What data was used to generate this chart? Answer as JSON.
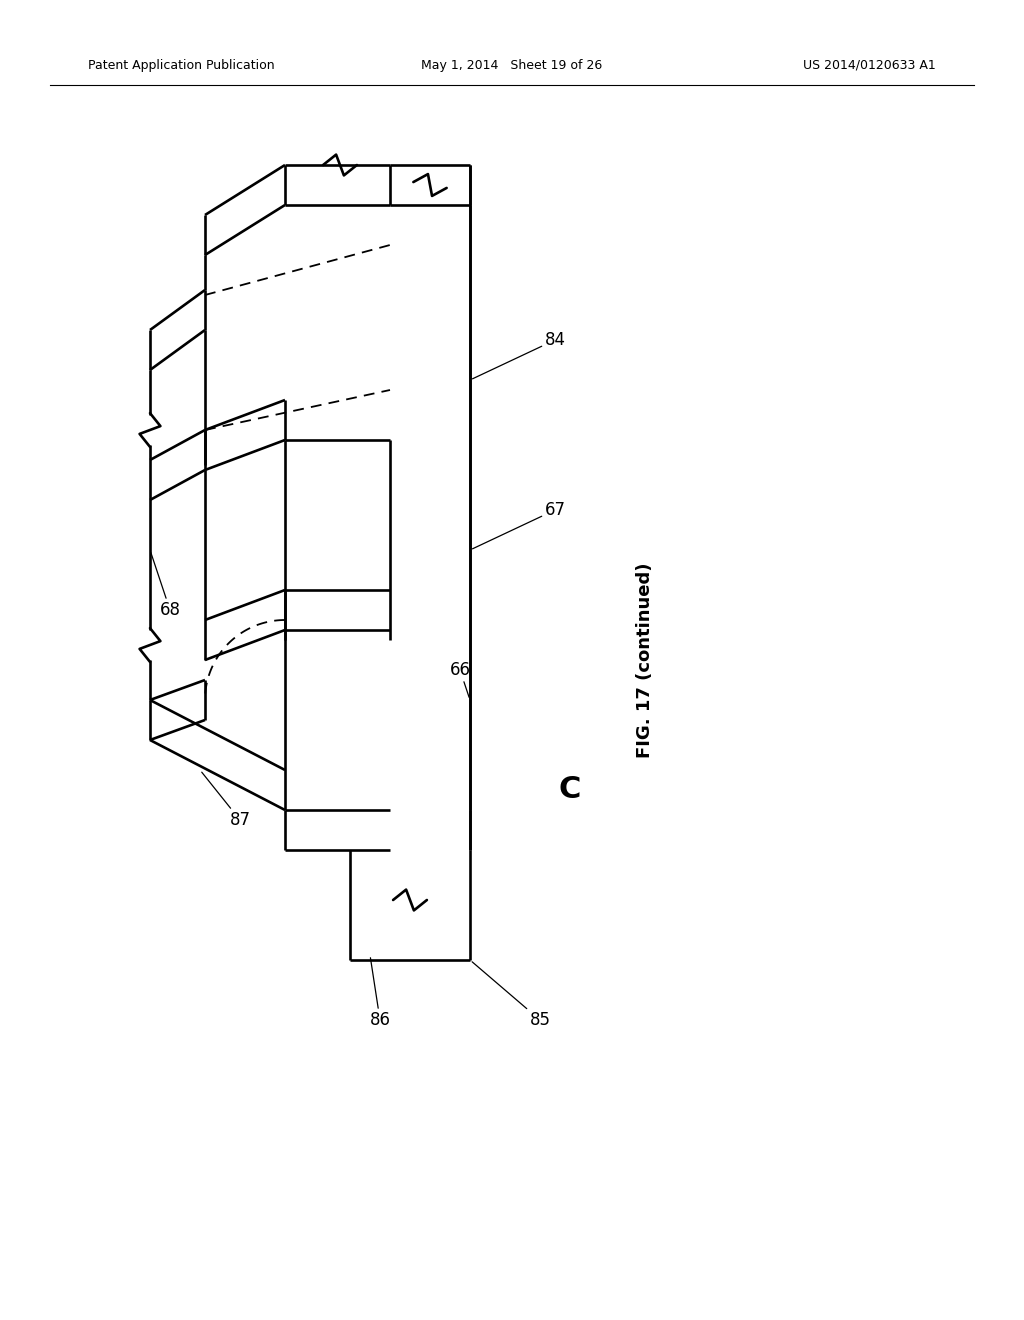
{
  "bg_color": "#ffffff",
  "line_color": "#000000",
  "header_left": "Patent Application Publication",
  "header_mid": "May 1, 2014   Sheet 19 of 26",
  "header_right": "US 2014/0120633 A1",
  "fig_label": "FIG. 17 (continued)",
  "section_label": "C"
}
